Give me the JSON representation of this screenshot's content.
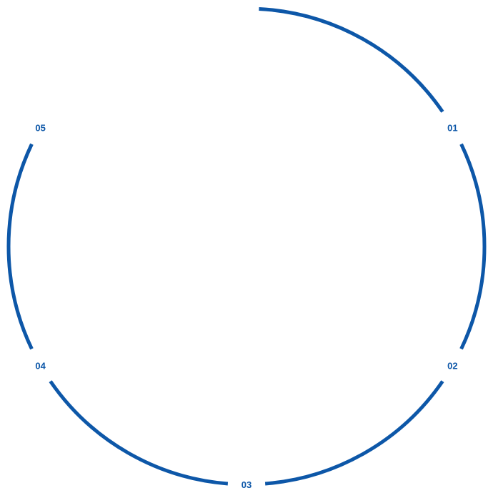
{
  "color": "#0d57a8",
  "markers": [
    {
      "label": "01",
      "angle_deg": -30
    },
    {
      "label": "02",
      "angle_deg": 30
    },
    {
      "label": "03",
      "angle_deg": 90
    },
    {
      "label": "04",
      "angle_deg": 150
    },
    {
      "label": "05",
      "angle_deg": 210
    }
  ],
  "arc_start_deg": -87
}
